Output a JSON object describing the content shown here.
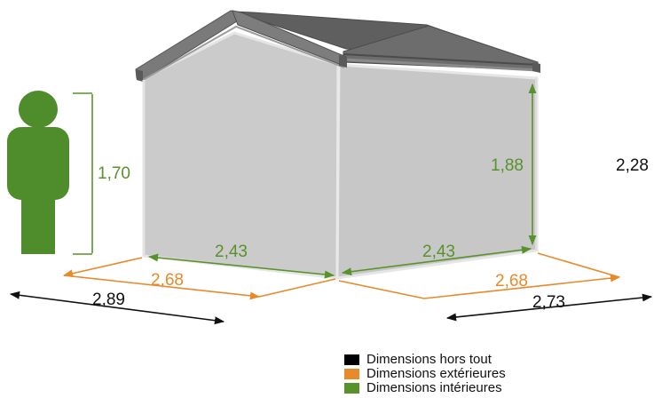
{
  "colors": {
    "hors_tout": "#000000",
    "exterieur": "#e8892a",
    "interieur": "#58922b",
    "person": "#4f8d2c",
    "wall": "#cbcbcb",
    "roof": "#6c6c6c"
  },
  "dimensions": {
    "person_height": "1,70",
    "inner_height": "1,88",
    "total_height": "2,28",
    "inner_width_left": "2,43",
    "inner_width_right": "2,43",
    "outer_width_left": "2,68",
    "outer_width_right": "2,68",
    "total_width_left": "2,89",
    "total_width_right": "2,73"
  },
  "legend": [
    {
      "label": "Dimensions hors tout",
      "color": "#000000"
    },
    {
      "label": "Dimensions extérieures",
      "color": "#e8892a"
    },
    {
      "label": "Dimensions intérieures",
      "color": "#58922b"
    }
  ]
}
